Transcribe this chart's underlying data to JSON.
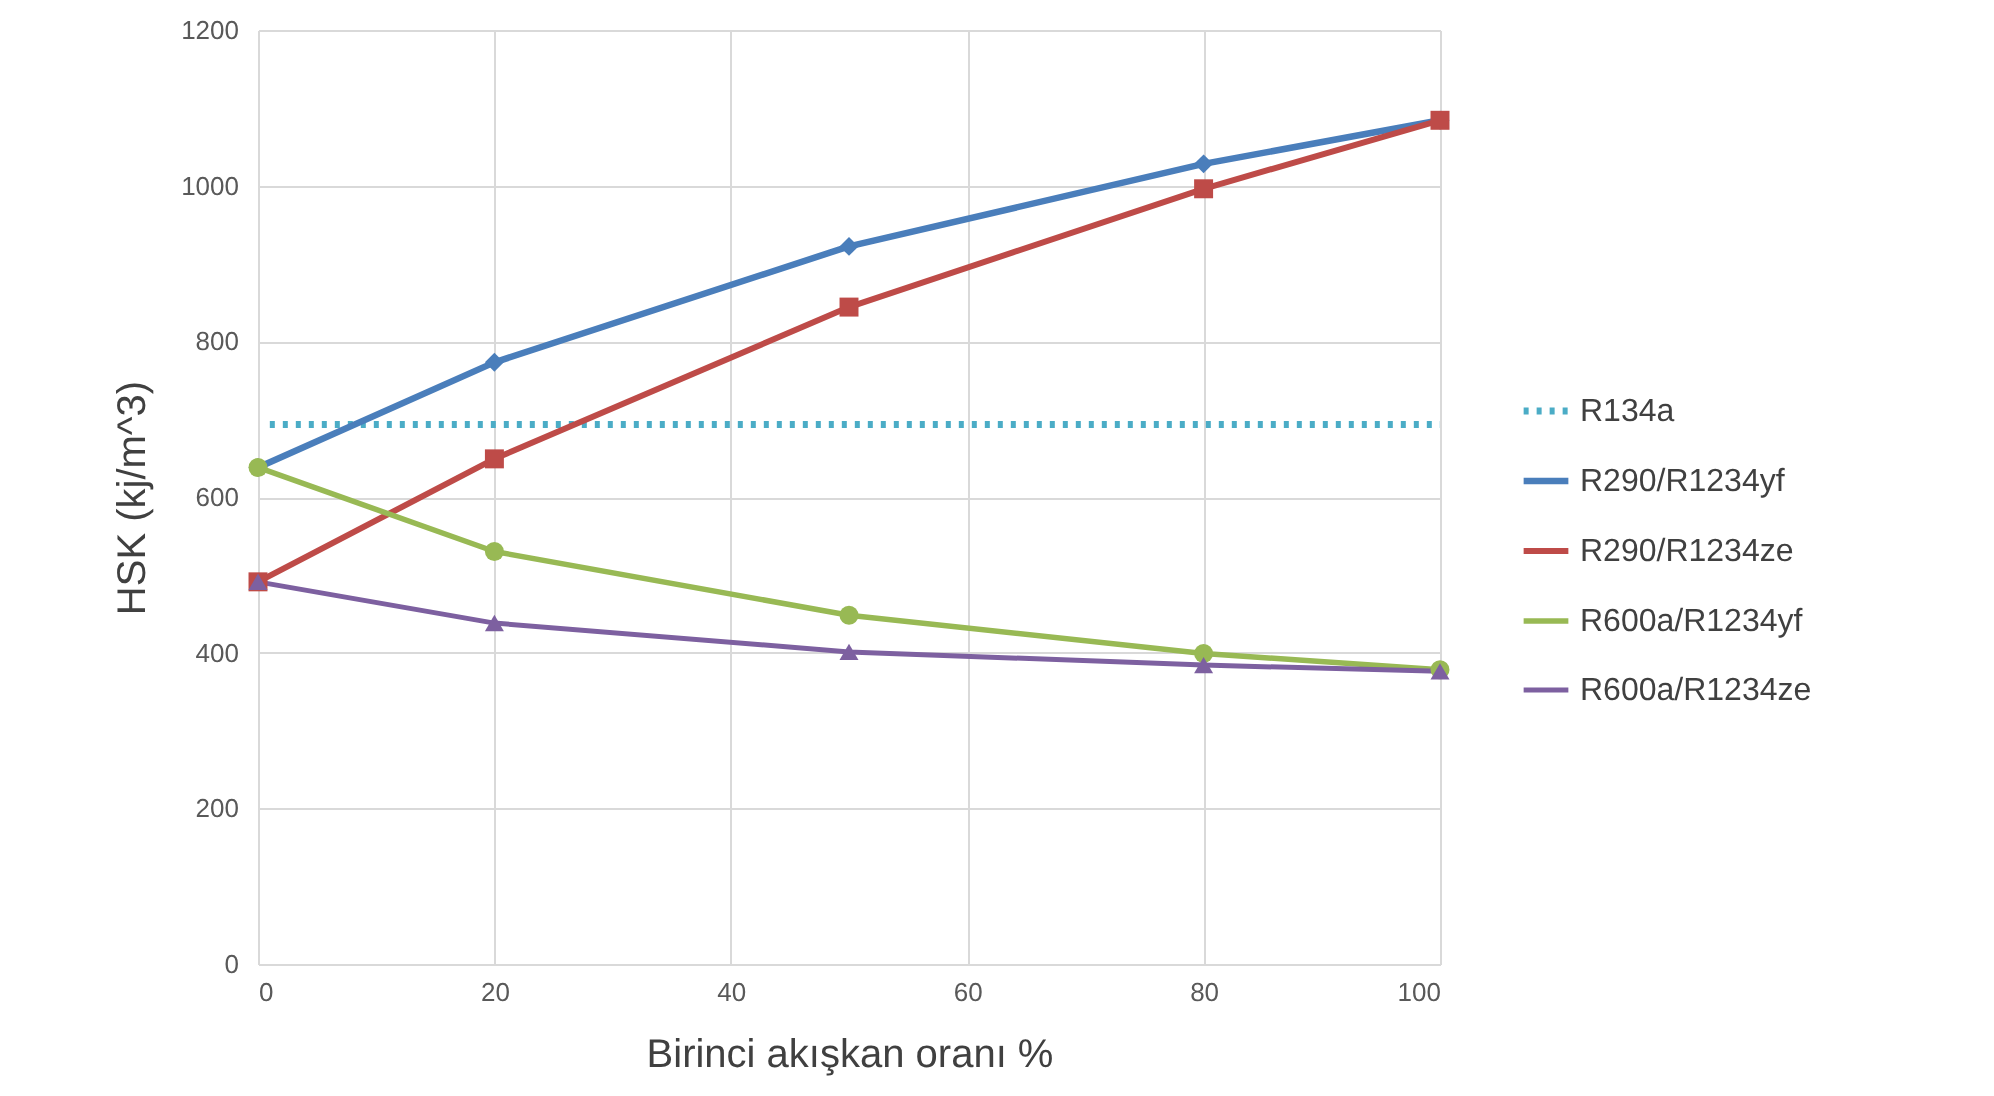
{
  "chart_data": {
    "type": "line",
    "xlabel": "Birinci akışkan oranı %",
    "ylabel": "HSK (kj/m^3)",
    "x": [
      0,
      20,
      50,
      80,
      100
    ],
    "xlim": [
      0,
      100
    ],
    "xticks": [
      0,
      20,
      40,
      60,
      80,
      100
    ],
    "ylim": [
      0,
      1200
    ],
    "yticks": [
      0,
      200,
      400,
      600,
      800,
      1000,
      1200
    ],
    "grid": true,
    "legend": "right",
    "series": [
      {
        "name": "R134a",
        "color": "#4bacc6",
        "x": [
          1,
          100
        ],
        "values": [
          693,
          693
        ],
        "marker": "none",
        "line_style": "dotted"
      },
      {
        "name": "R290/R1234yf",
        "color": "#4a7ebb",
        "values": [
          638,
          773,
          922,
          1028,
          1084
        ],
        "marker": "diamond",
        "line_style": "solid"
      },
      {
        "name": "R290/R1234ze",
        "color": "#be4b48",
        "values": [
          491,
          649,
          844,
          996,
          1084
        ],
        "marker": "square",
        "line_style": "solid"
      },
      {
        "name": "R600a/R1234yf",
        "color": "#98b954",
        "values": [
          638,
          530,
          448,
          399,
          378
        ],
        "marker": "circle",
        "line_style": "solid"
      },
      {
        "name": "R600a/R1234ze",
        "color": "#7d60a0",
        "values": [
          491,
          438,
          401,
          384,
          376
        ],
        "marker": "triangle",
        "line_style": "solid"
      }
    ]
  }
}
